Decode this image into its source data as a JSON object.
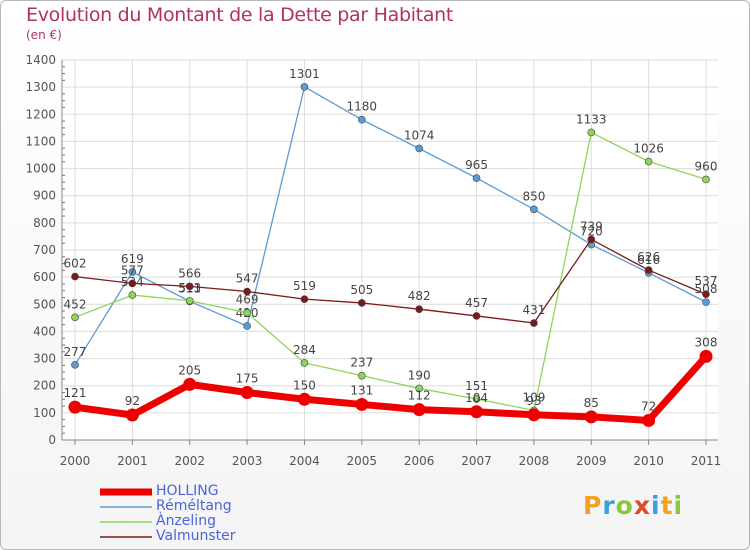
{
  "header": {
    "title": "Evolution du Montant de la Dette par Habitant",
    "unit": "(en €)"
  },
  "logo": {
    "letters": [
      "P",
      "r",
      "o",
      "x",
      "i",
      "t",
      "i"
    ],
    "colors": [
      "#f4a020",
      "#3aa0d8",
      "#8cc63f",
      "#e04a2a",
      "#3aa0d8",
      "#f4a020",
      "#8cc63f"
    ]
  },
  "chart_data": {
    "type": "line",
    "x": [
      "2000",
      "2001",
      "2002",
      "2003",
      "2004",
      "2005",
      "2006",
      "2007",
      "2008",
      "2009",
      "2010",
      "2011"
    ],
    "ylim": [
      0,
      1400
    ],
    "yticks": [
      "0",
      "100",
      "200",
      "300",
      "400",
      "500",
      "600",
      "700",
      "800",
      "900",
      "1000",
      "1100",
      "1200",
      "1300",
      "1400"
    ],
    "grid": true,
    "legend_position": "bottom-left",
    "series": [
      {
        "name": "Réméltang",
        "color": "#5a9bd4",
        "values": [
          277,
          619,
          511,
          420,
          1301,
          1180,
          1074,
          965,
          850,
          720,
          616,
          508
        ],
        "labels": [
          "277",
          "619",
          "511",
          "420",
          "1301",
          "1180",
          "1074",
          "965",
          "850",
          "720",
          "616",
          "508"
        ]
      },
      {
        "name": "Ànzeling",
        "color": "#8fd45a",
        "values": [
          452,
          534,
          513,
          469,
          284,
          237,
          190,
          151,
          109,
          1133,
          1026,
          960
        ],
        "labels": [
          "452",
          "534",
          "513",
          "469",
          "284",
          "237",
          "190",
          "151",
          "109",
          "1133",
          "1026",
          "960"
        ]
      },
      {
        "name": "Valmunster",
        "color": "#7a1a1a",
        "values": [
          602,
          577,
          566,
          547,
          519,
          505,
          482,
          457,
          431,
          739,
          626,
          537
        ],
        "labels": [
          "602",
          "577",
          "566",
          "547",
          "519",
          "505",
          "482",
          "457",
          "431",
          "739",
          "626",
          "537"
        ]
      },
      {
        "name": "HOLLING",
        "color": "#ee0000",
        "values": [
          121,
          92,
          205,
          175,
          150,
          131,
          112,
          104,
          93,
          85,
          72,
          308
        ],
        "labels": [
          "121",
          "92",
          "205",
          "175",
          "150",
          "131",
          "112",
          "104",
          "93",
          "85",
          "72",
          "308"
        ]
      }
    ],
    "legend": [
      "HOLLING",
      "Réméltang",
      "Ànzeling",
      "Valmunster"
    ]
  }
}
